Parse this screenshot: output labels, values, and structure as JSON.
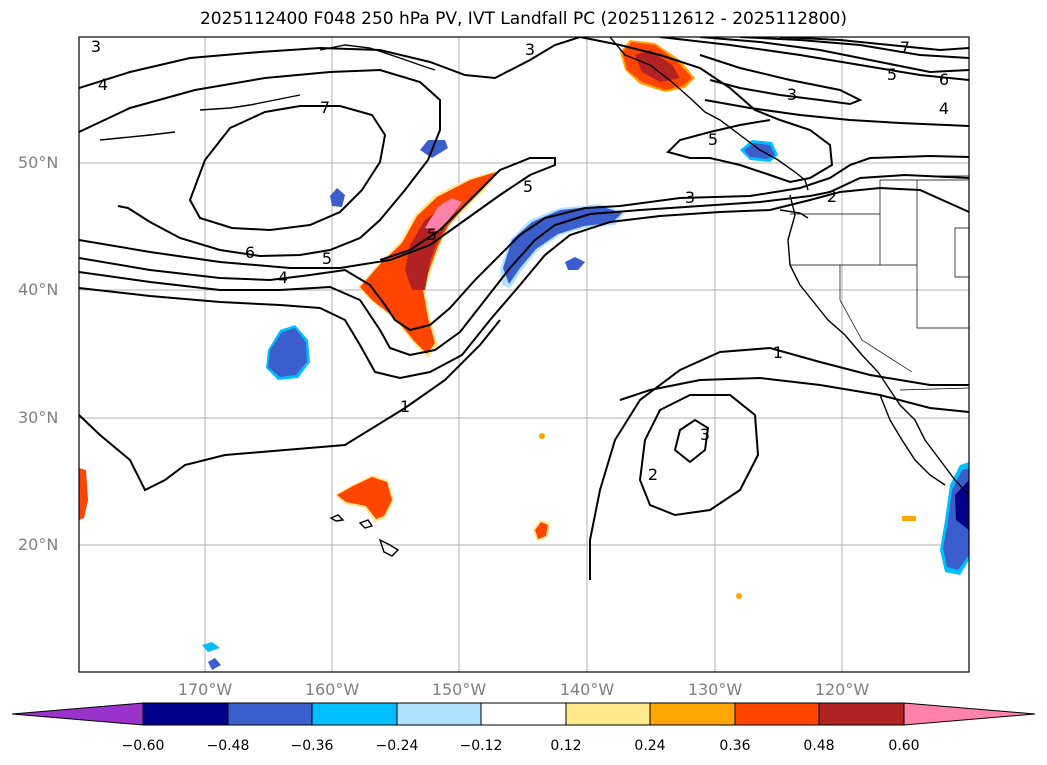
{
  "map": {
    "title": "2025112400 F048 250 hPa PV, IVT Landfall PC (2025112612 - 2025112800)",
    "lat_labels": [
      "50°N",
      "40°N",
      "30°N",
      "20°N"
    ],
    "lon_labels": [
      "170°W",
      "160°W",
      "150°W",
      "140°W",
      "130°W",
      "120°W"
    ],
    "contour_labels": [
      "3",
      "4",
      "7",
      "6",
      "5",
      "4",
      "5",
      "3",
      "3",
      "5",
      "3",
      "2",
      "1",
      "3",
      "2",
      "1",
      "7",
      "5",
      "6",
      "4",
      "5"
    ]
  },
  "colorbar": {
    "tick_labels": [
      "−0.60",
      "−0.48",
      "−0.36",
      "−0.24",
      "−0.12",
      "0.12",
      "0.24",
      "0.36",
      "0.48",
      "0.60"
    ],
    "colors": [
      "#9933cc",
      "#00008b",
      "#3a5fcd",
      "#00bfff",
      "#b0e2ff",
      "#ffffff",
      "#ffe88c",
      "#ffa500",
      "#ff4500",
      "#b22222",
      "#ff82ab"
    ]
  }
}
